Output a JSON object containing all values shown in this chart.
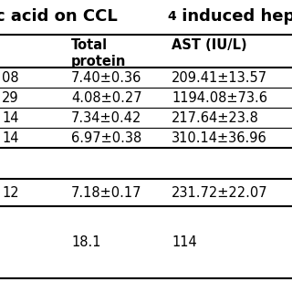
{
  "title_part1": "c acid on CCL",
  "title_sub": "4",
  "title_part2": " induced hepat",
  "col1_header": "Total\nprotein",
  "col2_header": "AST (IU/L)",
  "rows": [
    [
      "08",
      "7.40±0.36",
      "209.41±13.57"
    ],
    [
      "29",
      "4.08±0.27",
      "1194.08±73.6"
    ],
    [
      "14",
      "7.34±0.42",
      "217.64±23.8"
    ],
    [
      "14",
      "6.97±0.38",
      "310.14±36.96"
    ]
  ],
  "sep_row": [
    "12",
    "7.18±0.17",
    "231.72±22.07"
  ],
  "footer_row": [
    "",
    "18.1",
    "114"
  ],
  "bg_color": "#ffffff",
  "text_color": "#000000",
  "font_size": 10.5,
  "header_font_size": 10.5,
  "title_font_size": 13
}
